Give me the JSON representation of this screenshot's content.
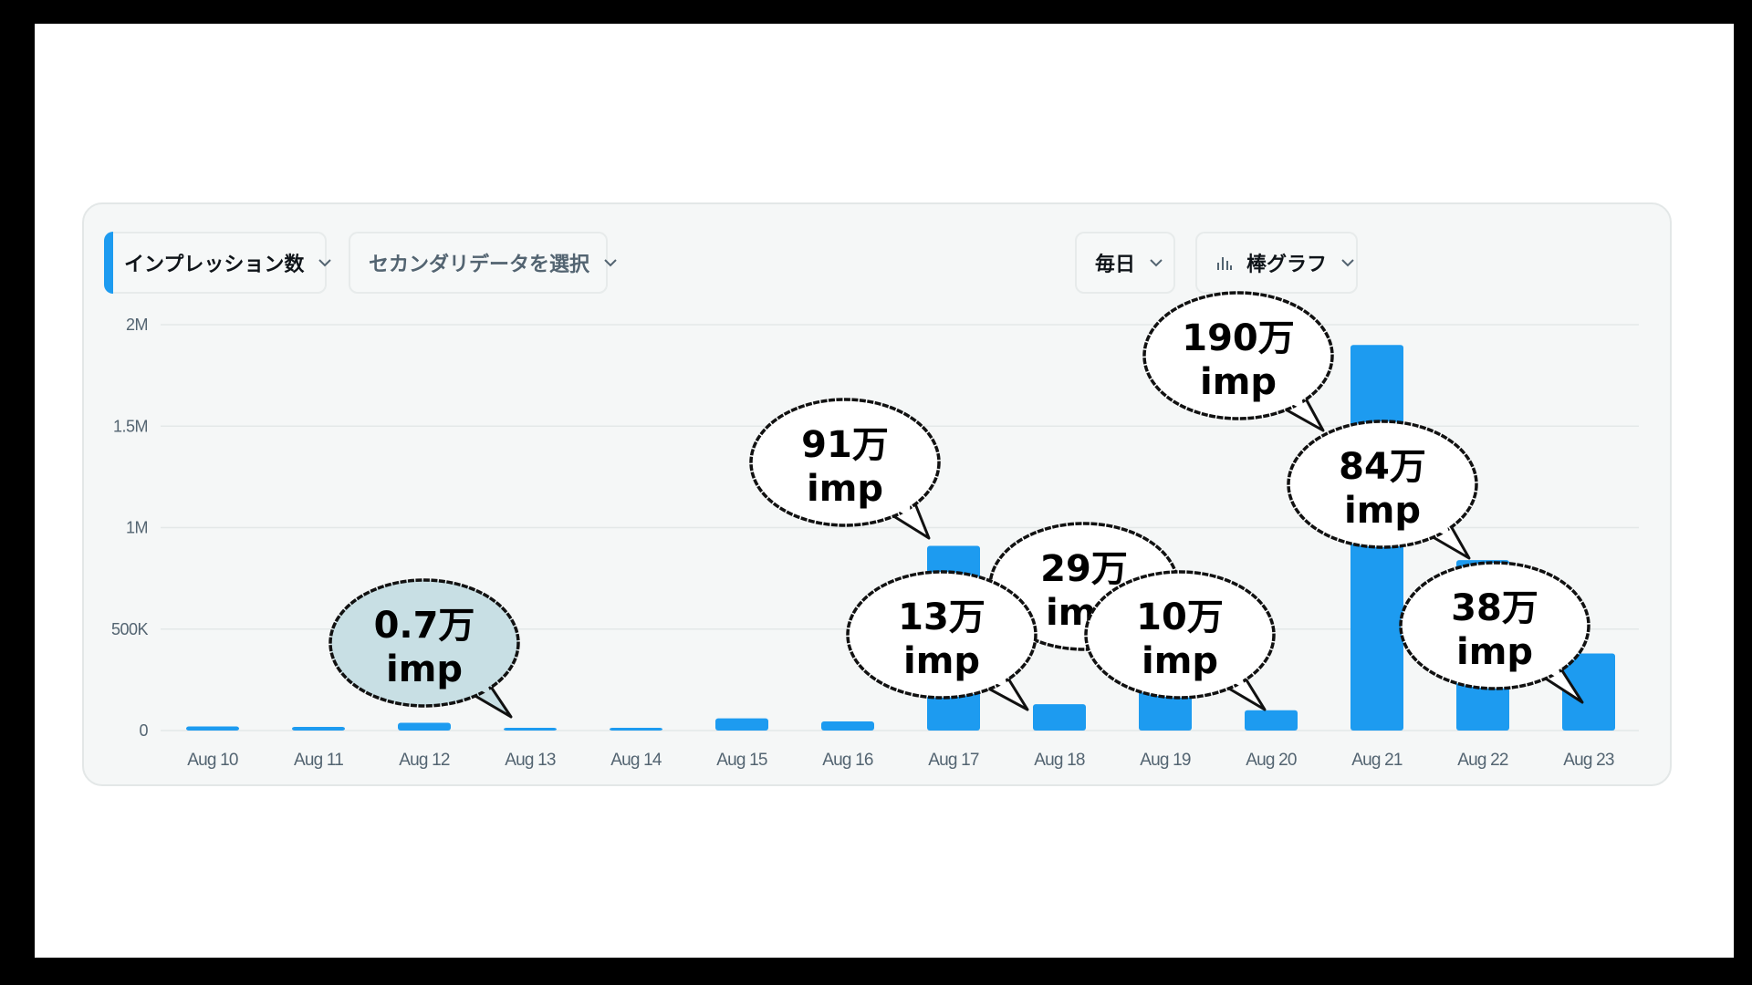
{
  "controls": {
    "primary_metric": "インプレッション数",
    "secondary_metric_placeholder": "セカンダリデータを選択",
    "interval": "毎日",
    "chart_type": "棒グラフ"
  },
  "colors": {
    "bar": "#1d9bf0",
    "accent": "#1d9bf0",
    "highlight_bubble": "#c8dfe4",
    "bubble": "#ffffff"
  },
  "chart_data": {
    "type": "bar",
    "title": "",
    "xlabel": "",
    "ylabel": "",
    "categories": [
      "Aug 10",
      "Aug 11",
      "Aug 12",
      "Aug 13",
      "Aug 14",
      "Aug 15",
      "Aug 16",
      "Aug 17",
      "Aug 18",
      "Aug 19",
      "Aug 20",
      "Aug 21",
      "Aug 22",
      "Aug 23"
    ],
    "values": [
      20000,
      18000,
      38000,
      7000,
      12000,
      60000,
      45000,
      910000,
      130000,
      290000,
      100000,
      1900000,
      840000,
      380000
    ],
    "ylim": [
      0,
      2000000
    ],
    "yticks": [
      0,
      500000,
      1000000,
      1500000,
      2000000
    ],
    "ytick_labels": [
      "0",
      "500K",
      "1M",
      "1.5M",
      "2M"
    ],
    "grid": true,
    "annotations": [
      {
        "line1": "0.7万",
        "line2": "imp",
        "target": "Aug 13",
        "highlight": true
      },
      {
        "line1": "91万",
        "line2": "imp",
        "target": "Aug 17",
        "highlight": false
      },
      {
        "line1": "13万",
        "line2": "imp",
        "target": "Aug 18",
        "highlight": false
      },
      {
        "line1": "29万",
        "line2": "imp",
        "target": "Aug 19",
        "highlight": false
      },
      {
        "line1": "10万",
        "line2": "imp",
        "target": "Aug 20",
        "highlight": false
      },
      {
        "line1": "190万",
        "line2": "imp",
        "target": "Aug 21",
        "highlight": false
      },
      {
        "line1": "84万",
        "line2": "imp",
        "target": "Aug 22",
        "highlight": false
      },
      {
        "line1": "38万",
        "line2": "imp",
        "target": "Aug 23",
        "highlight": false
      }
    ]
  }
}
